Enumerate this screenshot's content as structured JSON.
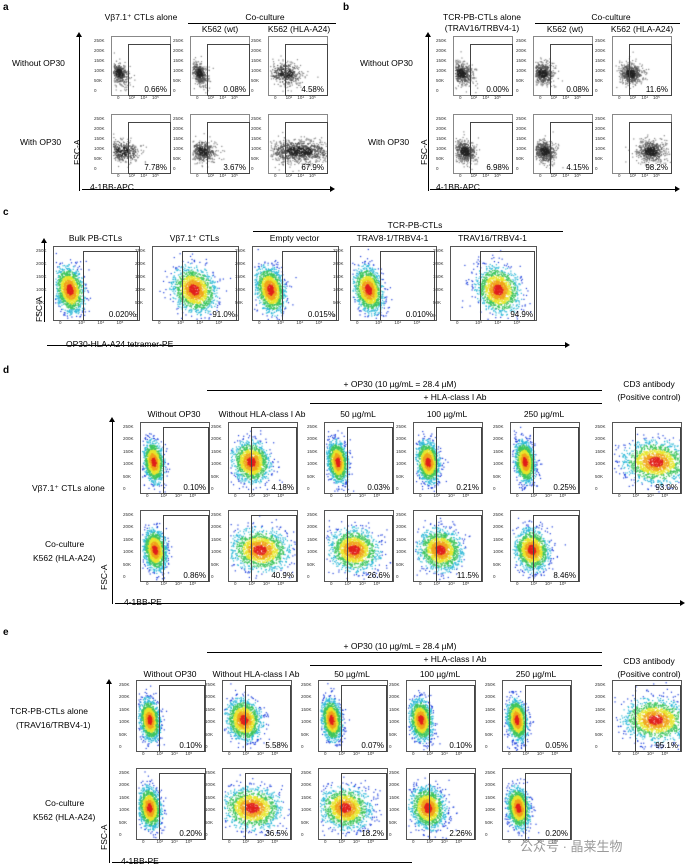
{
  "panel_a": {
    "label": "a",
    "col_alone": "Vβ7.1⁺ CTLs alone",
    "coculture": "Co-culture",
    "col_wt": "K562 (wt)",
    "col_hla": "K562 (HLA-A24)",
    "row1": "Without OP30",
    "row2": "With OP30",
    "ylabel": "FSC-A",
    "xlabel": "4-1BB-APC",
    "percents": [
      [
        "0.66%",
        "0.08%",
        "4.58%"
      ],
      [
        "7.78%",
        "3.67%",
        "67.9%"
      ]
    ],
    "ticks_y": [
      "250K",
      "200K",
      "150K",
      "100K",
      "50K",
      "0"
    ],
    "ticks_x": [
      "0",
      "10³",
      "10⁴",
      "10⁵"
    ]
  },
  "panel_b": {
    "label": "b",
    "col_alone_1": "TCR-PB-CTLs alone",
    "col_alone_2": "(TRAV16/TRBV4-1)",
    "coculture": "Co-culture",
    "col_wt": "K562 (wt)",
    "col_hla": "K562 (HLA-A24)",
    "row1": "Without OP30",
    "row2": "With OP30",
    "ylabel": "FSC-A",
    "xlabel": "4-1BB-APC",
    "percents": [
      [
        "0.00%",
        "0.08%",
        "11.6%"
      ],
      [
        "6.98%",
        "4.15%",
        "98.2%"
      ]
    ]
  },
  "panel_c": {
    "label": "c",
    "cols": [
      "Bulk PB-CTLs",
      "Vβ7.1⁺ CTLs",
      "Empty vector",
      "TRAV8-1/TRBV4-1",
      "TRAV16/TRBV4-1"
    ],
    "group": "TCR-PB-CTLs",
    "ylabel": "FSC-A",
    "xlabel": "OP30-HLA-A24 tetramer-PE",
    "percents": [
      "0.020%",
      "91.0%",
      "0.015%",
      "0.010%",
      "94.9%"
    ]
  },
  "panel_d": {
    "label": "d",
    "op30": "+ OP30 (10 µg/mL = 28.4 µM)",
    "hla": "+ HLA-class I Ab",
    "cols": [
      "Without OP30",
      "Without HLA-class I Ab",
      "50 µg/mL",
      "100 µg/mL",
      "250 µg/mL"
    ],
    "cd3_1": "CD3 antibody",
    "cd3_2": "(Positive control)",
    "row1": "Vβ7.1⁺ CTLs alone",
    "row2_1": "Co-culture",
    "row2_2": "K562 (HLA-A24)",
    "ylabel": "FSC-A",
    "xlabel": "4-1BB-PE",
    "percents": [
      [
        "0.10%",
        "4.18%",
        "0.03%",
        "0.21%",
        "0.25%",
        "93.0%"
      ],
      [
        "0.86%",
        "40.9%",
        "26.6%",
        "11.5%",
        "8.46%"
      ]
    ]
  },
  "panel_e": {
    "label": "e",
    "op30": "+ OP30 (10 µg/mL = 28.4 µM)",
    "hla": "+ HLA-class I Ab",
    "cols": [
      "Without OP30",
      "Without HLA-class I Ab",
      "50 µg/mL",
      "100 µg/mL",
      "250 µg/mL"
    ],
    "cd3_1": "CD3 antibody",
    "cd3_2": "(Positive control)",
    "row1_1": "TCR-PB-CTLs alone",
    "row1_2": "(TRAV16/TRBV4-1)",
    "row2_1": "Co-culture",
    "row2_2": "K562 (HLA-A24)",
    "ylabel": "FSC-A",
    "xlabel": "4-1BB-PE",
    "percents": [
      [
        "0.10%",
        "5.58%",
        "0.07%",
        "0.10%",
        "0.05%",
        "95.1%"
      ],
      [
        "0.20%",
        "36.5%",
        "18.2%",
        "2.26%",
        "0.20%"
      ]
    ]
  },
  "watermark": "公众号 · 晶莱生物"
}
